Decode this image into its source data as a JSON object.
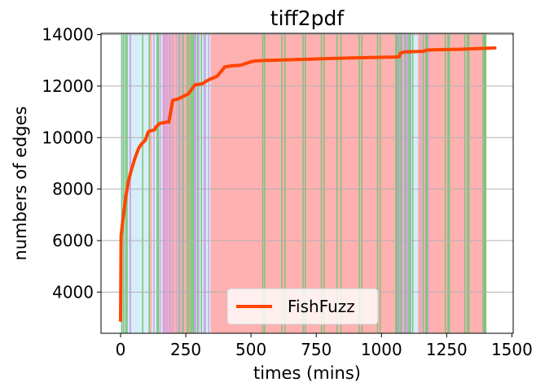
{
  "chart_data": {
    "type": "line",
    "title": "tiff2pdf",
    "xlabel": "times (mins)",
    "ylabel": "numbers of edges",
    "xlim": [
      -75,
      1505
    ],
    "ylim": [
      2400,
      14050
    ],
    "xticks": [
      0,
      250,
      500,
      750,
      1000,
      1250,
      1500
    ],
    "yticks": [
      4000,
      6000,
      8000,
      10000,
      12000,
      14000
    ],
    "grid": "horizontal",
    "legend_position": "bottom-center",
    "series": [
      {
        "name": "FishFuzz",
        "color": "#ff4500",
        "x": [
          0,
          2,
          10,
          20,
          30,
          40,
          55,
          70,
          80,
          95,
          105,
          110,
          130,
          135,
          150,
          175,
          185,
          200,
          220,
          230,
          260,
          285,
          295,
          315,
          330,
          345,
          370,
          400,
          420,
          440,
          460,
          500,
          520,
          560,
          600,
          700,
          800,
          900,
          1000,
          1050,
          1068,
          1072,
          1090,
          1160,
          1175,
          1200,
          1300,
          1400,
          1435
        ],
        "y": [
          2900,
          6200,
          6900,
          7700,
          8300,
          8700,
          9200,
          9600,
          9750,
          9900,
          10200,
          10250,
          10300,
          10400,
          10550,
          10600,
          10600,
          11450,
          11500,
          11550,
          11700,
          12050,
          12060,
          12100,
          12200,
          12280,
          12380,
          12750,
          12780,
          12800,
          12810,
          12950,
          12980,
          13000,
          13010,
          13040,
          13070,
          13100,
          13120,
          13130,
          13140,
          13280,
          13330,
          13350,
          13400,
          13410,
          13430,
          13470,
          13480
        ]
      }
    ],
    "background_bands": [
      {
        "from": 0,
        "to": 110,
        "color": "#d5eef7"
      },
      {
        "from": 110,
        "to": 120,
        "color": "#ffb0b0"
      },
      {
        "from": 120,
        "to": 160,
        "color": "#d5eef7"
      },
      {
        "from": 160,
        "to": 270,
        "color": "#ffb0b0"
      },
      {
        "from": 270,
        "to": 345,
        "color": "#d5eef7"
      },
      {
        "from": 345,
        "to": 1100,
        "color": "#ffb0b0"
      },
      {
        "from": 1100,
        "to": 1140,
        "color": "#d5eef7"
      },
      {
        "from": 1140,
        "to": 1400,
        "color": "#ffb0b0"
      }
    ],
    "purple_lines": [
      36,
      38,
      128,
      152,
      165,
      170,
      178,
      188,
      190,
      200,
      215,
      225,
      235,
      285,
      288,
      300,
      320,
      325,
      338,
      1060,
      1070,
      1080,
      1095,
      1100,
      1112,
      1150,
      1180,
      1260,
      1330
    ],
    "green_lines": [
      5,
      12,
      20,
      25,
      85,
      110,
      140,
      145,
      225,
      240,
      255,
      262,
      270,
      275,
      280,
      295,
      310,
      545,
      552,
      618,
      630,
      700,
      708,
      770,
      780,
      830,
      845,
      915,
      925,
      985,
      995,
      1055,
      1058,
      1065,
      1075,
      1090,
      1105,
      1110,
      1120,
      1160,
      1170,
      1175,
      1245,
      1255,
      1260,
      1320,
      1330,
      1335,
      1390,
      1395,
      1400
    ]
  }
}
